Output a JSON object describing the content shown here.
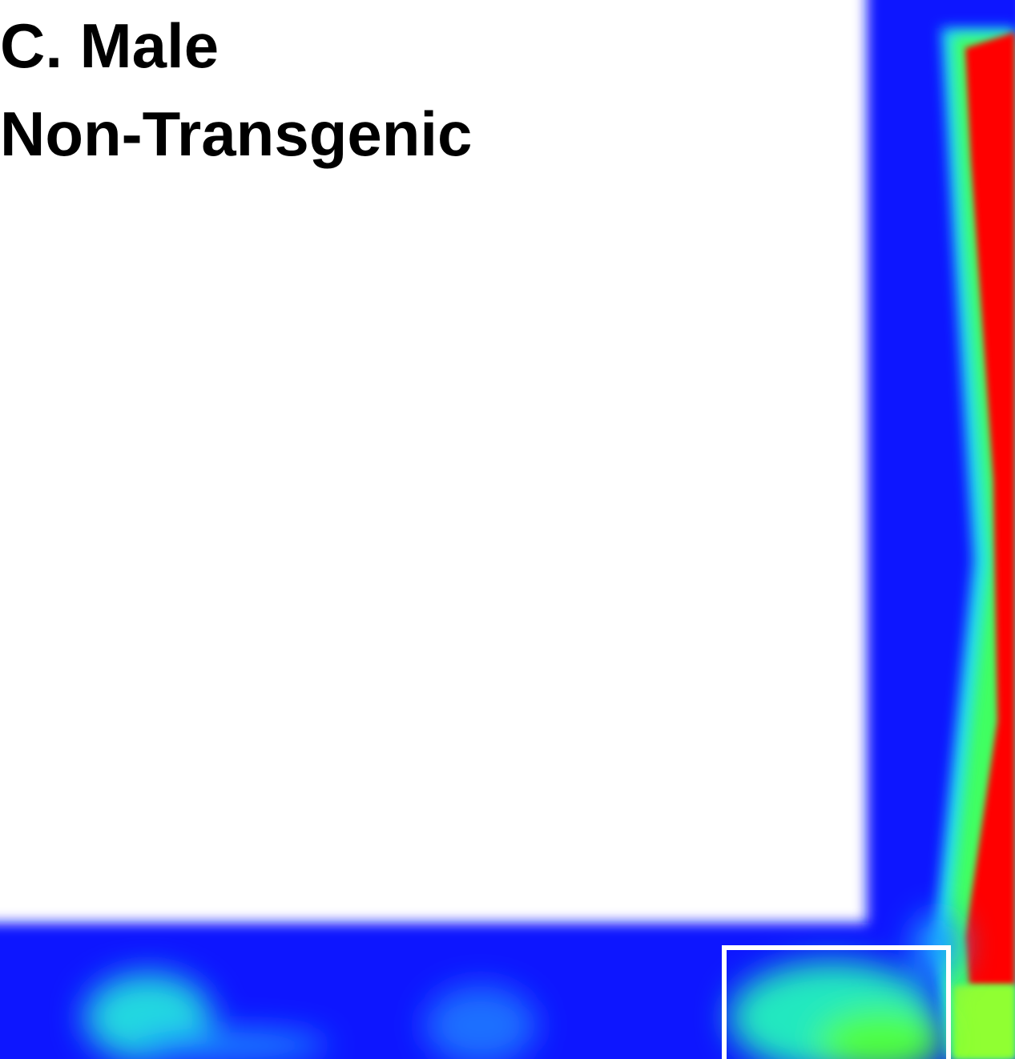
{
  "panel": {
    "label": "C. Male",
    "group": "Non-Transgenic"
  }
}
